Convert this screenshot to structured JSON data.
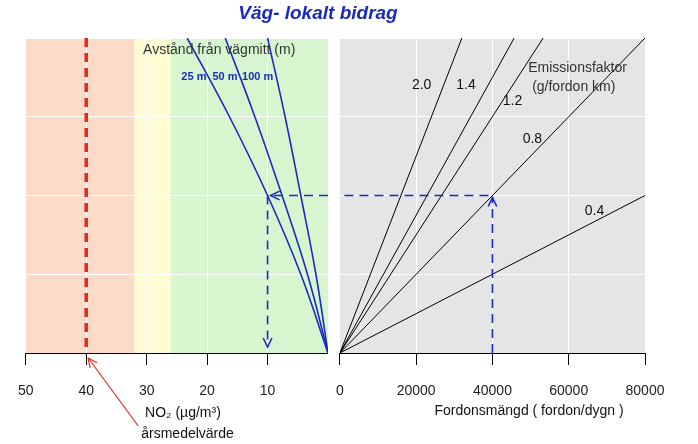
{
  "title": "Väg- lokalt bidrag",
  "chart_data": [
    {
      "type": "line",
      "xlabel": "NO₂ (µg/m³)",
      "annotation": "Avstånd från vägmitt (m)",
      "xlim": [
        50,
        0
      ],
      "xticks": [
        50,
        40,
        30,
        20,
        10
      ],
      "ylim": [
        0,
        4
      ],
      "yticks": [
        0,
        1,
        2,
        3,
        4
      ],
      "grid": true,
      "tick_labels": "x",
      "bands": [
        {
          "from": 50,
          "to": 32,
          "color": "#fcdcc9"
        },
        {
          "from": 32,
          "to": 26,
          "color": "#fdfcd2"
        },
        {
          "from": 26,
          "to": 0,
          "color": "#d7f6cf"
        }
      ],
      "limit": {
        "value": 40,
        "label": "årsmedelvärde",
        "color": "#e8281e",
        "line_style": "dashed"
      },
      "example": {
        "level": 2,
        "value": 10,
        "color": "#1a2bbf",
        "line_style": "dashed"
      },
      "series": [
        {
          "name": "25 m",
          "color": "#1a2bbf",
          "x": [
            0,
            4.5,
            10,
            16.3,
            23.3
          ],
          "values": [
            0,
            1,
            2,
            3,
            4
          ]
        },
        {
          "name": "50 m",
          "color": "#1a2bbf",
          "x": [
            0,
            3.4,
            7.6,
            12.1,
            17
          ],
          "values": [
            0,
            1,
            2,
            3,
            4
          ]
        },
        {
          "name": "100 m",
          "color": "#1a2bbf",
          "x": [
            0,
            2,
            4.5,
            7.1,
            10
          ],
          "values": [
            0,
            1,
            2,
            3,
            4
          ]
        }
      ]
    },
    {
      "type": "line",
      "xlabel": "Fordonsmängd ( fordon/dygn )",
      "annotation": [
        "Emissionsfaktor",
        "(g/fordon km)"
      ],
      "xlim": [
        0,
        80000
      ],
      "xticks": [
        0,
        20000,
        40000,
        60000,
        80000
      ],
      "ylim": [
        0,
        4
      ],
      "yticks": [
        0,
        1,
        2,
        3,
        4
      ],
      "grid": true,
      "tick_labels": "x",
      "bands": [
        {
          "from": 0,
          "to": 80000,
          "color": "#e5e5e5"
        }
      ],
      "example": {
        "level": 2,
        "value": 40000,
        "color": "#1a2bbf",
        "line_style": "dashed"
      },
      "series": [
        {
          "name": "2.0",
          "color": "#000000",
          "x": [
            0,
            32000
          ],
          "values": [
            0,
            4
          ]
        },
        {
          "name": "1.4",
          "color": "#000000",
          "x": [
            0,
            45700
          ],
          "values": [
            0,
            4
          ]
        },
        {
          "name": "1.2",
          "color": "#000000",
          "x": [
            0,
            53300
          ],
          "values": [
            0,
            4
          ]
        },
        {
          "name": "0.8",
          "color": "#000000",
          "x": [
            0,
            80000
          ],
          "values": [
            0,
            4
          ]
        },
        {
          "name": "0.4",
          "color": "#000000",
          "x": [
            0,
            80000
          ],
          "values": [
            0,
            2
          ]
        }
      ]
    }
  ]
}
